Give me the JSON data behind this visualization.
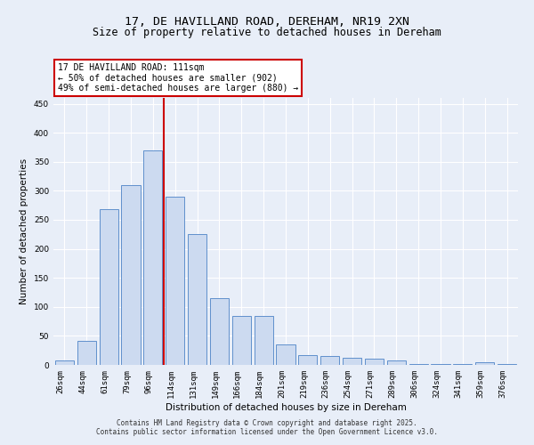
{
  "title_line1": "17, DE HAVILLAND ROAD, DEREHAM, NR19 2XN",
  "title_line2": "Size of property relative to detached houses in Dereham",
  "xlabel": "Distribution of detached houses by size in Dereham",
  "ylabel": "Number of detached properties",
  "categories": [
    "26sqm",
    "44sqm",
    "61sqm",
    "79sqm",
    "96sqm",
    "114sqm",
    "131sqm",
    "149sqm",
    "166sqm",
    "184sqm",
    "201sqm",
    "219sqm",
    "236sqm",
    "254sqm",
    "271sqm",
    "289sqm",
    "306sqm",
    "324sqm",
    "341sqm",
    "359sqm",
    "376sqm"
  ],
  "values": [
    7,
    42,
    268,
    310,
    370,
    290,
    225,
    115,
    84,
    84,
    35,
    17,
    15,
    12,
    10,
    8,
    2,
    1,
    1,
    4,
    2
  ],
  "bar_color": "#ccdaf0",
  "bar_edge_color": "#6090cc",
  "vline_x": 4.5,
  "vline_color": "#cc0000",
  "annotation_text": "17 DE HAVILLAND ROAD: 111sqm\n← 50% of detached houses are smaller (902)\n49% of semi-detached houses are larger (880) →",
  "annotation_box_color": "#ffffff",
  "annotation_box_edge": "#cc0000",
  "ylim": [
    0,
    460
  ],
  "yticks": [
    0,
    50,
    100,
    150,
    200,
    250,
    300,
    350,
    400,
    450
  ],
  "bg_color": "#e8eef8",
  "plot_bg_color": "#e8eef8",
  "footer_text": "Contains HM Land Registry data © Crown copyright and database right 2025.\nContains public sector information licensed under the Open Government Licence v3.0.",
  "title_fontsize": 9.5,
  "subtitle_fontsize": 8.5,
  "label_fontsize": 7.5,
  "tick_fontsize": 6.5,
  "annotation_fontsize": 7,
  "footer_fontsize": 5.5
}
